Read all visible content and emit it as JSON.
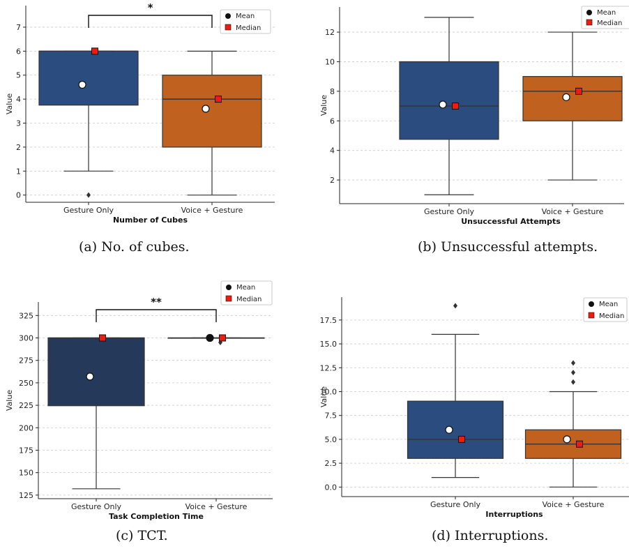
{
  "chart_data": [
    {
      "type": "box",
      "xlabel": "Number of Cubes",
      "ylabel": "Value",
      "categories": [
        "Gesture Only",
        "Voice + Gesture"
      ],
      "ylim": [
        -0.3,
        7.9
      ],
      "yticks": [
        0,
        1,
        2,
        3,
        4,
        5,
        6,
        7
      ],
      "boxes": [
        {
          "category": "Gesture Only",
          "color": "#2B4C7E",
          "q1": 3.75,
          "median": 6.0,
          "q3": 6.0,
          "whisker_low": 1.0,
          "whisker_high": 6.0,
          "mean": 4.6,
          "outliers": [
            0
          ]
        },
        {
          "category": "Voice + Gesture",
          "color": "#C0611F",
          "q1": 2.0,
          "median": 4.0,
          "q3": 5.0,
          "whisker_low": 0,
          "whisker_high": 6.0,
          "mean": 3.6,
          "outliers": []
        }
      ],
      "significance": "*",
      "legend": {
        "position": "top-right",
        "items": [
          "Mean",
          "Median"
        ]
      },
      "caption": "(a) No. of cubes."
    },
    {
      "type": "box",
      "xlabel": "Unsuccessful Attempts",
      "ylabel": "Value",
      "categories": [
        "Gesture Only",
        "Voice + Gesture"
      ],
      "ylim": [
        0.4,
        13.7
      ],
      "yticks": [
        2,
        4,
        6,
        8,
        10,
        12
      ],
      "boxes": [
        {
          "category": "Gesture Only",
          "color": "#2B4C7E",
          "q1": 4.75,
          "median": 7.0,
          "q3": 10.0,
          "whisker_low": 1,
          "whisker_high": 13,
          "mean": 7.1,
          "outliers": []
        },
        {
          "category": "Voice + Gesture",
          "color": "#C0611F",
          "q1": 6.0,
          "median": 8.0,
          "q3": 9.0,
          "whisker_low": 2,
          "whisker_high": 12,
          "mean": 7.6,
          "outliers": []
        }
      ],
      "significance": "",
      "legend": {
        "position": "top-right",
        "items": [
          "Mean",
          "Median"
        ]
      },
      "caption": "(b) Unsuccessful attempts."
    },
    {
      "type": "box",
      "xlabel": "Task Completion Time",
      "ylabel": "Value",
      "categories": [
        "Gesture Only",
        "Voice + Gesture"
      ],
      "ylim": [
        121,
        340
      ],
      "yticks": [
        125,
        150,
        175,
        200,
        225,
        250,
        275,
        300,
        325
      ],
      "boxes": [
        {
          "category": "Gesture Only",
          "color": "#25395A",
          "q1": 224.5,
          "median": 300,
          "q3": 300,
          "whisker_low": 132,
          "whisker_high": 300,
          "mean": 257,
          "outliers": []
        },
        {
          "category": "Voice + Gesture",
          "color": "#C0611F",
          "q1": 300,
          "median": 300,
          "q3": 300,
          "whisker_low": 300,
          "whisker_high": 300,
          "mean": 300,
          "outliers": [
            295
          ]
        }
      ],
      "significance": "**",
      "legend": {
        "position": "top-right",
        "items": [
          "Mean",
          "Median"
        ]
      },
      "caption": "(c) TCT."
    },
    {
      "type": "box",
      "xlabel": "Interruptions",
      "ylabel": "Value",
      "categories": [
        "Gesture Only",
        "Voice + Gesture"
      ],
      "ylim": [
        -1.0,
        19.9
      ],
      "yticks": [
        0.0,
        2.5,
        5.0,
        7.5,
        10.0,
        12.5,
        15.0,
        17.5
      ],
      "yticklabels": [
        "0.0",
        "2.5",
        "5.0",
        "7.5",
        "10.0",
        "12.5",
        "15.0",
        "17.5"
      ],
      "boxes": [
        {
          "category": "Gesture Only",
          "color": "#2B4C7E",
          "q1": 3.0,
          "median": 5.0,
          "q3": 9.0,
          "whisker_low": 1,
          "whisker_high": 16,
          "mean": 6.0,
          "outliers": [
            19
          ]
        },
        {
          "category": "Voice + Gesture",
          "color": "#C0611F",
          "q1": 3.0,
          "median": 4.5,
          "q3": 6.0,
          "whisker_low": 0,
          "whisker_high": 10,
          "mean": 5.0,
          "outliers": [
            11,
            12,
            13
          ]
        }
      ],
      "significance": "",
      "legend": {
        "position": "top-right",
        "items": [
          "Mean",
          "Median"
        ]
      },
      "caption": "(d) Interruptions."
    }
  ]
}
